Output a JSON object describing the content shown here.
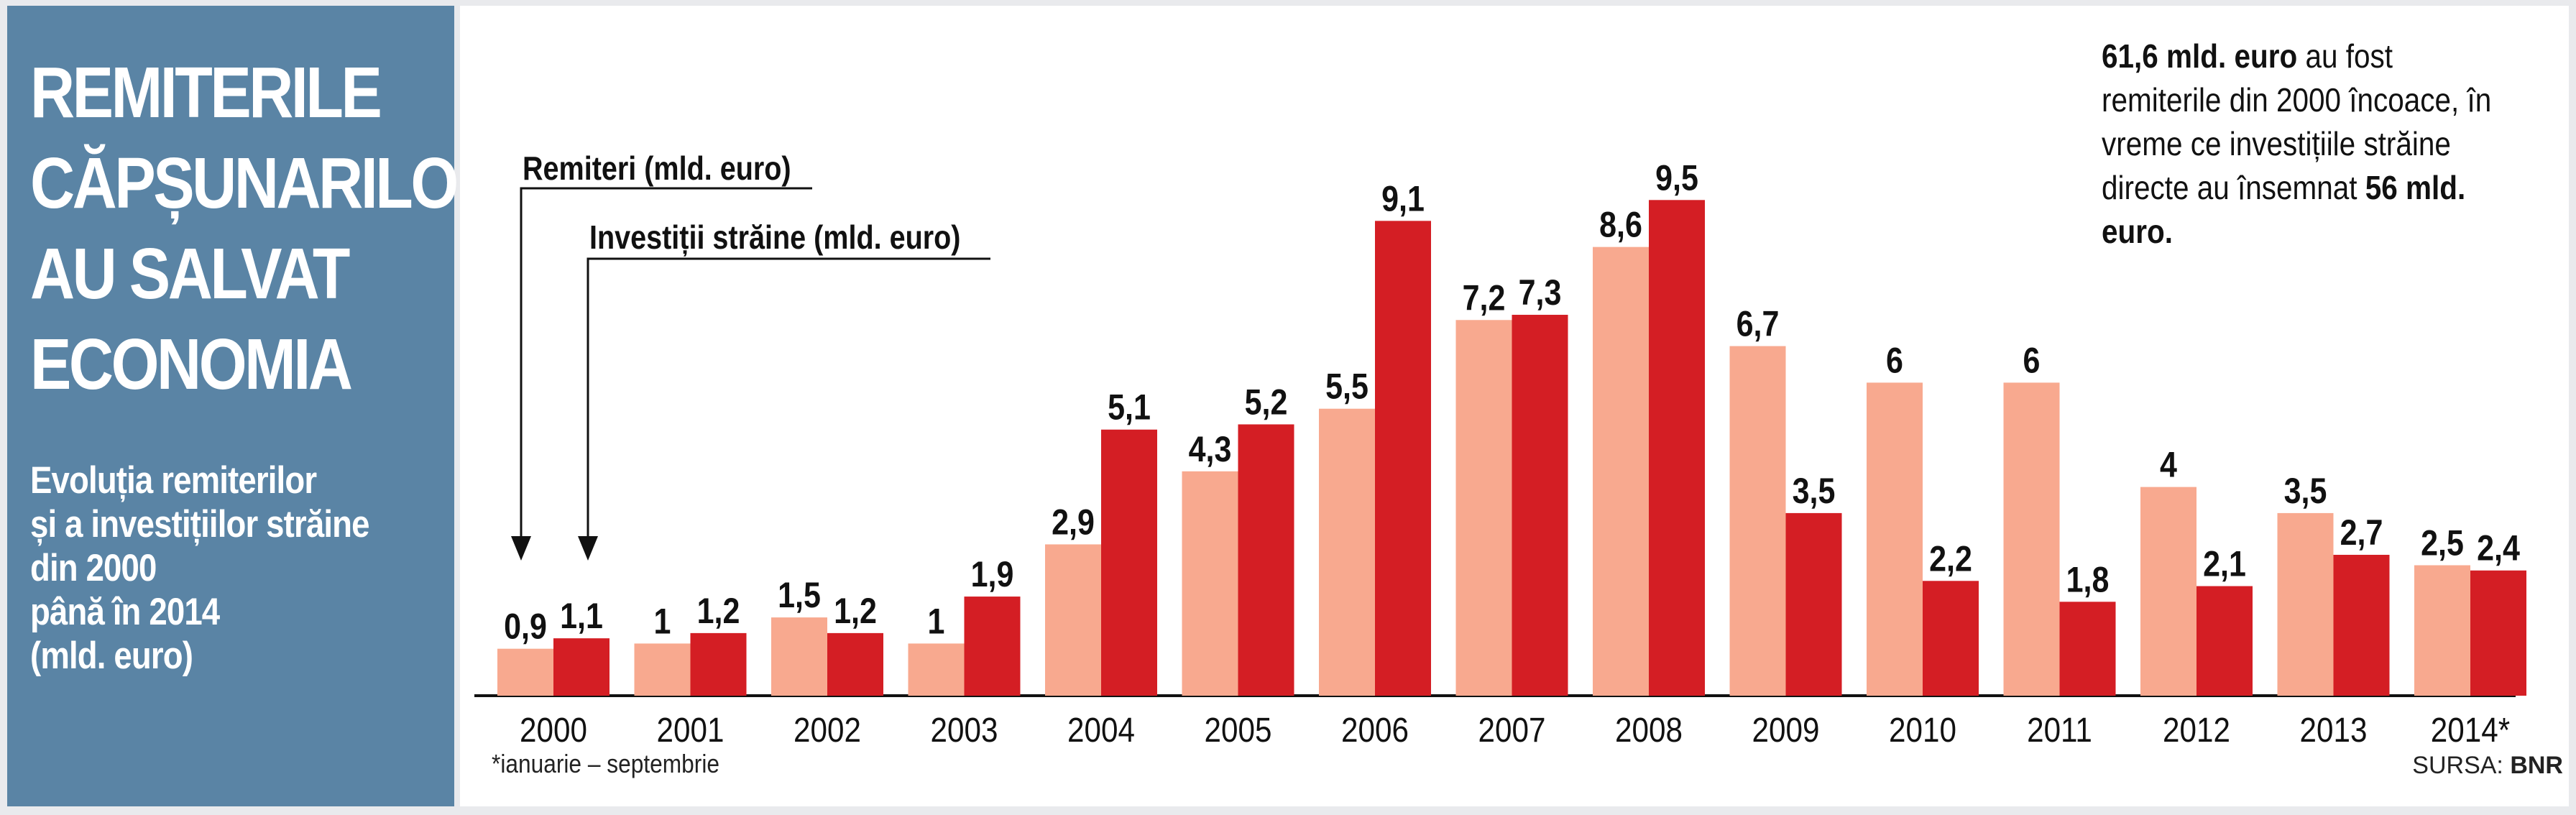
{
  "sidebar": {
    "title_lines": [
      "REMITERILE",
      "CĂPȘUNARILOR",
      "AU SALVAT",
      "ECONOMIA"
    ],
    "subtitle_lines": [
      "Evoluția remiterilor",
      "și a investițiilor străine",
      "din 2000",
      "până în 2014",
      "(mld. euro)"
    ]
  },
  "note": {
    "part1_bold": "61,6 mld. euro",
    "part2": " au fost remiterile din 2000 încoace, în vreme ce investițiile străine directe au însemnat ",
    "part3_bold": "56 mld. euro."
  },
  "footnote": "*ianuarie – septembrie",
  "source": {
    "label": "SURSA:",
    "value": "BNR"
  },
  "colors": {
    "remittances": "#f8a98f",
    "investments": "#d41e24",
    "sidebar": "#5a84a5"
  },
  "chart_data": {
    "type": "bar",
    "title": "Remiterile căpșunarilor au salvat economia",
    "xlabel": "",
    "ylabel": "mld. euro",
    "ylim": [
      0,
      10
    ],
    "categories": [
      "2000",
      "2001",
      "2002",
      "2003",
      "2004",
      "2005",
      "2006",
      "2007",
      "2008",
      "2009",
      "2010",
      "2011",
      "2012",
      "2013",
      "2014*"
    ],
    "series": [
      {
        "name": "Remiteri (mld. euro)",
        "color": "#f8a98f",
        "values": [
          0.9,
          1,
          1.5,
          1,
          2.9,
          4.3,
          5.5,
          7.2,
          8.6,
          6.7,
          6,
          6,
          4,
          3.5,
          2.5
        ],
        "labels": [
          "0,9",
          "1",
          "1,5",
          "1",
          "2,9",
          "4,3",
          "5,5",
          "7,2",
          "8,6",
          "6,7",
          "6",
          "6",
          "4",
          "3,5",
          "2,5"
        ]
      },
      {
        "name": "Investiții străine (mld. euro)",
        "color": "#d41e24",
        "values": [
          1.1,
          1.2,
          1.2,
          1.9,
          5.1,
          5.2,
          9.1,
          7.3,
          9.5,
          3.5,
          2.2,
          1.8,
          2.1,
          2.7,
          2.4
        ],
        "labels": [
          "1,1",
          "1,2",
          "1,2",
          "1,9",
          "5,1",
          "5,2",
          "9,1",
          "7,3",
          "9,5",
          "3,5",
          "2,2",
          "1,8",
          "2,1",
          "2,7",
          "2,4"
        ]
      }
    ]
  }
}
